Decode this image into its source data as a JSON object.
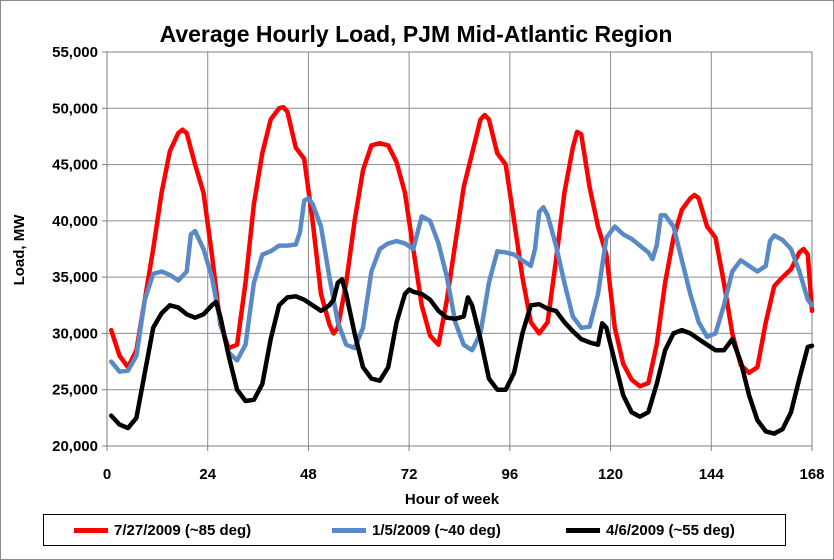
{
  "chart_data": {
    "type": "line",
    "title": "Average Hourly Load, PJM Mid-Atlantic Region",
    "xlabel": "Hour of week",
    "ylabel": "Load, MW",
    "xlim": [
      0,
      168
    ],
    "ylim": [
      20000,
      55000
    ],
    "xticks": [
      0,
      24,
      48,
      72,
      96,
      120,
      144,
      168
    ],
    "yticks": [
      20000,
      25000,
      30000,
      35000,
      40000,
      45000,
      50000,
      55000
    ],
    "ytick_labels": [
      "20,000",
      "25,000",
      "30,000",
      "35,000",
      "40,000",
      "45,000",
      "50,000",
      "55,000"
    ],
    "grid": true,
    "legend_position": "bottom",
    "series": [
      {
        "name": "7/27/2009 (~85 deg)",
        "color": "#ff0000",
        "points": [
          [
            1,
            30300
          ],
          [
            3,
            28000
          ],
          [
            5,
            27000
          ],
          [
            7,
            28500
          ],
          [
            9,
            33000
          ],
          [
            11,
            37500
          ],
          [
            13,
            42500
          ],
          [
            15,
            46200
          ],
          [
            17,
            47800
          ],
          [
            18,
            48100
          ],
          [
            19,
            47800
          ],
          [
            21,
            45000
          ],
          [
            23,
            42500
          ],
          [
            25,
            37000
          ],
          [
            27,
            30800
          ],
          [
            29,
            28700
          ],
          [
            31,
            29000
          ],
          [
            33,
            34500
          ],
          [
            35,
            41500
          ],
          [
            37,
            46000
          ],
          [
            39,
            49000
          ],
          [
            41,
            50000
          ],
          [
            42,
            50100
          ],
          [
            43,
            49700
          ],
          [
            45,
            46500
          ],
          [
            47,
            45500
          ],
          [
            49,
            40000
          ],
          [
            51,
            33500
          ],
          [
            53,
            30800
          ],
          [
            54,
            30000
          ],
          [
            55,
            30500
          ],
          [
            57,
            34500
          ],
          [
            59,
            40000
          ],
          [
            61,
            44500
          ],
          [
            63,
            46700
          ],
          [
            65,
            46900
          ],
          [
            67,
            46700
          ],
          [
            69,
            45200
          ],
          [
            71,
            42500
          ],
          [
            73,
            37500
          ],
          [
            75,
            32500
          ],
          [
            77,
            29800
          ],
          [
            79,
            29000
          ],
          [
            81,
            33000
          ],
          [
            83,
            38000
          ],
          [
            85,
            43000
          ],
          [
            87,
            46000
          ],
          [
            89,
            49000
          ],
          [
            90,
            49400
          ],
          [
            91,
            49000
          ],
          [
            93,
            46000
          ],
          [
            95,
            45000
          ],
          [
            97,
            40000
          ],
          [
            99,
            35000
          ],
          [
            101,
            31000
          ],
          [
            103,
            30000
          ],
          [
            105,
            31000
          ],
          [
            107,
            36500
          ],
          [
            109,
            42500
          ],
          [
            111,
            46500
          ],
          [
            112,
            47900
          ],
          [
            113,
            47700
          ],
          [
            115,
            43000
          ],
          [
            117,
            39500
          ],
          [
            119,
            37000
          ],
          [
            121,
            30500
          ],
          [
            123,
            27300
          ],
          [
            125,
            25900
          ],
          [
            127,
            25300
          ],
          [
            129,
            25600
          ],
          [
            131,
            29000
          ],
          [
            133,
            34500
          ],
          [
            135,
            38500
          ],
          [
            137,
            41000
          ],
          [
            139,
            42000
          ],
          [
            140,
            42300
          ],
          [
            141,
            42000
          ],
          [
            143,
            39500
          ],
          [
            145,
            38500
          ],
          [
            147,
            34500
          ],
          [
            149,
            30000
          ],
          [
            151,
            27200
          ],
          [
            153,
            26500
          ],
          [
            155,
            27000
          ],
          [
            157,
            31000
          ],
          [
            159,
            34200
          ],
          [
            161,
            35000
          ],
          [
            163,
            35700
          ],
          [
            165,
            37200
          ],
          [
            166,
            37500
          ],
          [
            167,
            37000
          ],
          [
            168,
            32000
          ]
        ]
      },
      {
        "name": "1/5/2009 (~40 deg)",
        "color": "#5a8ac6",
        "points": [
          [
            1,
            27500
          ],
          [
            3,
            26600
          ],
          [
            5,
            26700
          ],
          [
            7,
            28000
          ],
          [
            9,
            33000
          ],
          [
            11,
            35300
          ],
          [
            13,
            35500
          ],
          [
            15,
            35200
          ],
          [
            17,
            34700
          ],
          [
            19,
            35500
          ],
          [
            20,
            38800
          ],
          [
            21,
            39100
          ],
          [
            23,
            37500
          ],
          [
            25,
            35000
          ],
          [
            27,
            31000
          ],
          [
            29,
            28300
          ],
          [
            31,
            27600
          ],
          [
            33,
            29000
          ],
          [
            35,
            34500
          ],
          [
            37,
            37000
          ],
          [
            39,
            37300
          ],
          [
            41,
            37800
          ],
          [
            43,
            37800
          ],
          [
            45,
            37900
          ],
          [
            46,
            39000
          ],
          [
            47,
            41800
          ],
          [
            48,
            42000
          ],
          [
            49,
            41500
          ],
          [
            51,
            39500
          ],
          [
            53,
            35000
          ],
          [
            55,
            31000
          ],
          [
            57,
            29000
          ],
          [
            59,
            28700
          ],
          [
            61,
            30500
          ],
          [
            63,
            35500
          ],
          [
            65,
            37500
          ],
          [
            67,
            38000
          ],
          [
            69,
            38200
          ],
          [
            71,
            38000
          ],
          [
            73,
            37500
          ],
          [
            75,
            40400
          ],
          [
            77,
            40000
          ],
          [
            79,
            38000
          ],
          [
            81,
            35000
          ],
          [
            83,
            31000
          ],
          [
            85,
            29000
          ],
          [
            87,
            28500
          ],
          [
            89,
            30000
          ],
          [
            91,
            34500
          ],
          [
            93,
            37300
          ],
          [
            95,
            37200
          ],
          [
            97,
            37000
          ],
          [
            99,
            36500
          ],
          [
            101,
            36000
          ],
          [
            102,
            37500
          ],
          [
            103,
            40800
          ],
          [
            104,
            41200
          ],
          [
            105,
            40500
          ],
          [
            107,
            37800
          ],
          [
            109,
            34500
          ],
          [
            111,
            31500
          ],
          [
            113,
            30500
          ],
          [
            115,
            30600
          ],
          [
            117,
            33500
          ],
          [
            119,
            38500
          ],
          [
            121,
            39500
          ],
          [
            123,
            38800
          ],
          [
            125,
            38400
          ],
          [
            127,
            37800
          ],
          [
            129,
            37200
          ],
          [
            130,
            36600
          ],
          [
            131,
            37800
          ],
          [
            132,
            40500
          ],
          [
            133,
            40500
          ],
          [
            135,
            39500
          ],
          [
            137,
            36500
          ],
          [
            139,
            33500
          ],
          [
            141,
            31000
          ],
          [
            143,
            29700
          ],
          [
            145,
            30000
          ],
          [
            147,
            32500
          ],
          [
            149,
            35500
          ],
          [
            151,
            36500
          ],
          [
            153,
            36000
          ],
          [
            155,
            35500
          ],
          [
            157,
            36000
          ],
          [
            158,
            38200
          ],
          [
            159,
            38700
          ],
          [
            161,
            38300
          ],
          [
            163,
            37500
          ],
          [
            165,
            35500
          ],
          [
            167,
            33000
          ],
          [
            168,
            32500
          ]
        ]
      },
      {
        "name": "4/6/2009 (~55 deg)",
        "color": "#000000",
        "points": [
          [
            1,
            22700
          ],
          [
            3,
            21900
          ],
          [
            5,
            21600
          ],
          [
            7,
            22500
          ],
          [
            9,
            26500
          ],
          [
            11,
            30500
          ],
          [
            13,
            31800
          ],
          [
            15,
            32500
          ],
          [
            17,
            32300
          ],
          [
            19,
            31700
          ],
          [
            21,
            31400
          ],
          [
            23,
            31700
          ],
          [
            25,
            32500
          ],
          [
            26,
            32800
          ],
          [
            27,
            31500
          ],
          [
            29,
            28000
          ],
          [
            31,
            25000
          ],
          [
            33,
            24000
          ],
          [
            35,
            24100
          ],
          [
            37,
            25500
          ],
          [
            39,
            29500
          ],
          [
            41,
            32500
          ],
          [
            43,
            33200
          ],
          [
            45,
            33300
          ],
          [
            47,
            33000
          ],
          [
            49,
            32500
          ],
          [
            51,
            32000
          ],
          [
            53,
            32500
          ],
          [
            54,
            33000
          ],
          [
            55,
            34500
          ],
          [
            56,
            34800
          ],
          [
            57,
            33500
          ],
          [
            59,
            30000
          ],
          [
            61,
            27000
          ],
          [
            63,
            26000
          ],
          [
            65,
            25800
          ],
          [
            67,
            27000
          ],
          [
            69,
            31000
          ],
          [
            71,
            33500
          ],
          [
            72,
            33900
          ],
          [
            73,
            33700
          ],
          [
            75,
            33500
          ],
          [
            77,
            33000
          ],
          [
            79,
            32000
          ],
          [
            81,
            31400
          ],
          [
            83,
            31300
          ],
          [
            85,
            31500
          ],
          [
            86,
            33200
          ],
          [
            87,
            32500
          ],
          [
            89,
            29500
          ],
          [
            91,
            26000
          ],
          [
            93,
            25000
          ],
          [
            95,
            25000
          ],
          [
            97,
            26500
          ],
          [
            99,
            30000
          ],
          [
            101,
            32500
          ],
          [
            103,
            32600
          ],
          [
            105,
            32200
          ],
          [
            107,
            32000
          ],
          [
            109,
            31000
          ],
          [
            111,
            30200
          ],
          [
            113,
            29500
          ],
          [
            115,
            29200
          ],
          [
            117,
            29000
          ],
          [
            118,
            30900
          ],
          [
            119,
            30500
          ],
          [
            121,
            27500
          ],
          [
            123,
            24500
          ],
          [
            125,
            23000
          ],
          [
            127,
            22600
          ],
          [
            129,
            23000
          ],
          [
            131,
            25500
          ],
          [
            133,
            28500
          ],
          [
            135,
            30000
          ],
          [
            137,
            30300
          ],
          [
            139,
            30000
          ],
          [
            141,
            29500
          ],
          [
            143,
            29000
          ],
          [
            145,
            28500
          ],
          [
            147,
            28500
          ],
          [
            149,
            29500
          ],
          [
            150,
            28500
          ],
          [
            151,
            27500
          ],
          [
            153,
            24500
          ],
          [
            155,
            22300
          ],
          [
            157,
            21300
          ],
          [
            159,
            21100
          ],
          [
            161,
            21500
          ],
          [
            163,
            23000
          ],
          [
            165,
            26000
          ],
          [
            167,
            28800
          ],
          [
            168,
            28900
          ]
        ]
      }
    ]
  }
}
